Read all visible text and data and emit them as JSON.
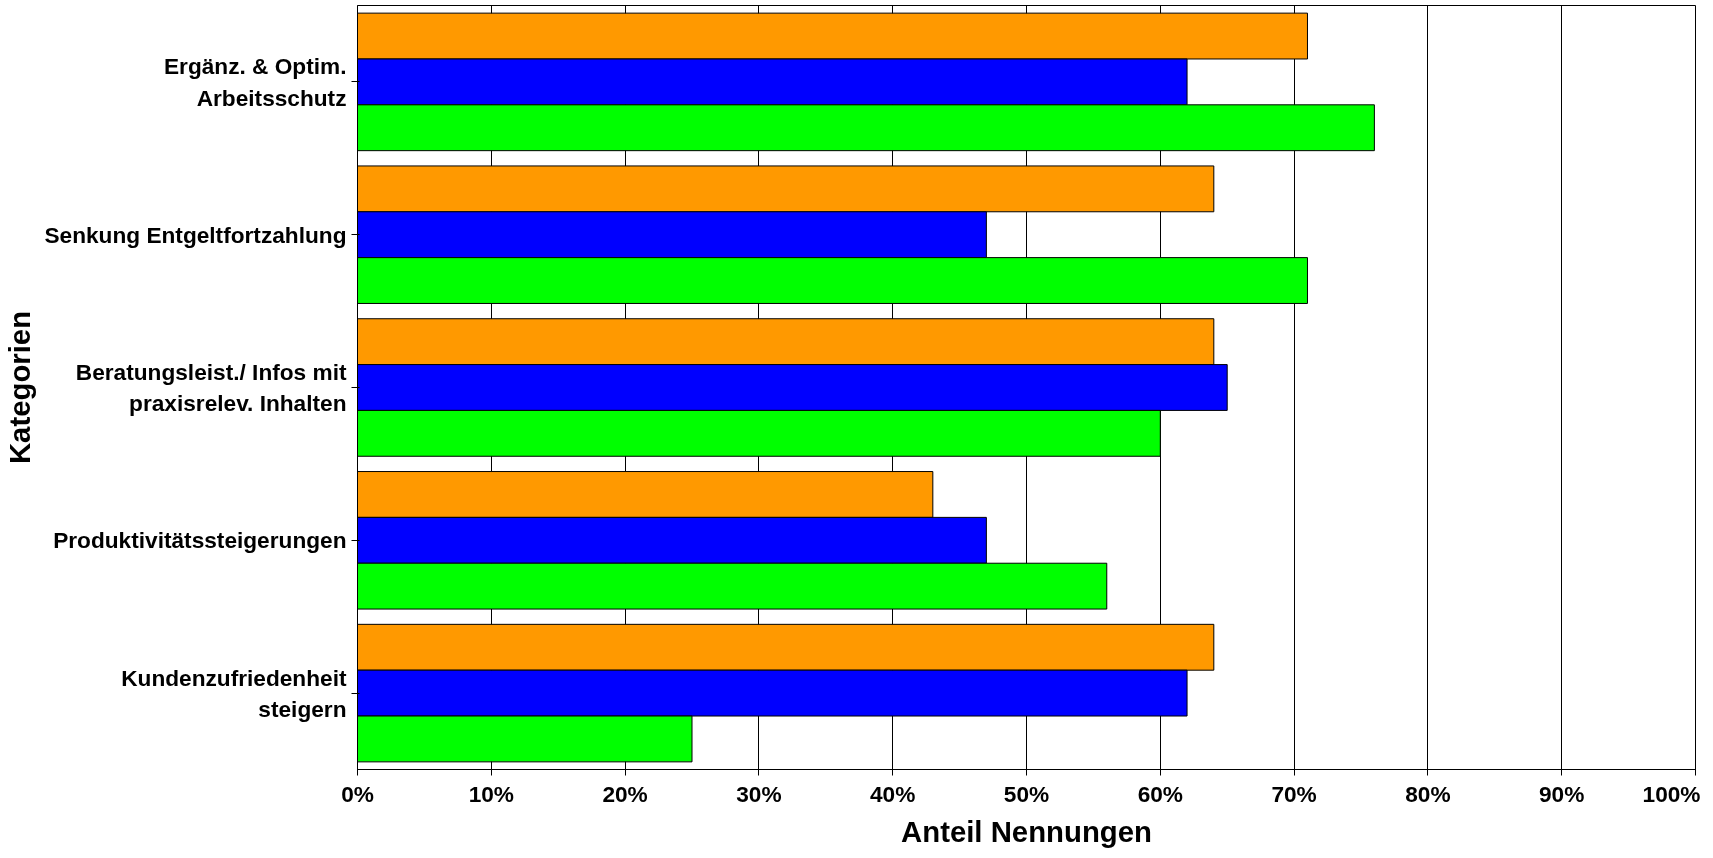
{
  "chart_data": {
    "type": "bar",
    "orientation": "horizontal",
    "xlabel": "Anteil Nennungen",
    "ylabel": "Kategorien",
    "categories": [
      "Ergänz. & Optim.\nArbeitsschutz",
      "Senkung Entgeltfortzahlung",
      "Beratungsleist./ Infos mit\npraxisrelev. Inhalten",
      "Produktivitätssteigerungen",
      "Kundenzufriedenheit\nsteigern"
    ],
    "series": [
      {
        "color": "#ff9900",
        "values": [
          71,
          64,
          64,
          43,
          64
        ]
      },
      {
        "color": "#0000ff",
        "values": [
          62,
          47,
          65,
          47,
          62
        ]
      },
      {
        "color": "#00ff00",
        "values": [
          76,
          71,
          60,
          56,
          25
        ]
      }
    ],
    "xlim": [
      0,
      100
    ],
    "xticks": [
      {
        "value": 0,
        "label": "0%"
      },
      {
        "value": 10,
        "label": "10%"
      },
      {
        "value": 20,
        "label": "20%"
      },
      {
        "value": 30,
        "label": "30%"
      },
      {
        "value": 40,
        "label": "40%"
      },
      {
        "value": 50,
        "label": "50%"
      },
      {
        "value": 60,
        "label": "60%"
      },
      {
        "value": 70,
        "label": "70%"
      },
      {
        "value": 80,
        "label": "80%"
      },
      {
        "value": 90,
        "label": "90%"
      },
      {
        "value": 100,
        "label": "100%"
      }
    ],
    "grid": "x"
  }
}
